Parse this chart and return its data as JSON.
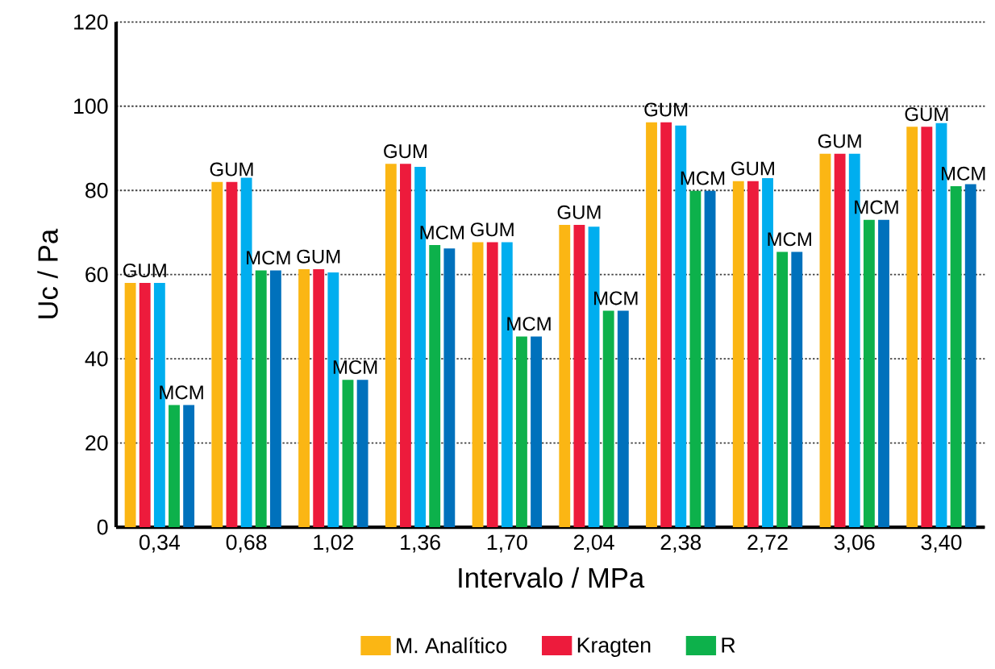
{
  "chart_data": {
    "type": "bar",
    "xlabel": "Intervalo / MPa",
    "ylabel": "Uc / Pa",
    "categories": [
      "0,34",
      "0,68",
      "1,02",
      "1,36",
      "1,70",
      "2,04",
      "2,38",
      "2,72",
      "3,06",
      "3,40"
    ],
    "series": [
      {
        "name": "M. Analítico",
        "color": "#fbb614",
        "values": [
          58,
          82,
          61.3,
          86.3,
          67.7,
          71.8,
          96.2,
          82.2,
          88.7,
          95.1
        ]
      },
      {
        "name": "Kragten",
        "color": "#ed1b3c",
        "values": [
          58,
          82,
          61.3,
          86.3,
          67.7,
          71.8,
          96.2,
          82.2,
          88.7,
          95.1
        ]
      },
      {
        "color": "#00aeef",
        "values": [
          58,
          83,
          60.5,
          85.6,
          67.7,
          71.4,
          95.4,
          82.9,
          88.7,
          96
        ]
      },
      {
        "name": "R",
        "color": "#0db14b",
        "values": [
          29,
          61,
          35,
          67,
          45.3,
          51.4,
          79.9,
          65.4,
          73,
          81
        ]
      },
      {
        "color": "#0071bc",
        "values": [
          29,
          61,
          35,
          66.2,
          45.3,
          51.4,
          79.9,
          65.4,
          73,
          81.5
        ]
      }
    ],
    "annotations": [
      {
        "text": "GUM",
        "x": "0,34",
        "y": 58
      },
      {
        "text": "MCM",
        "x": "0,34",
        "y": 29
      },
      {
        "text": "GUM",
        "x": "0,68",
        "y": 82
      },
      {
        "text": "MCM",
        "x": "0,68",
        "y": 61
      },
      {
        "text": "GUM",
        "x": "1,02",
        "y": 61.3
      },
      {
        "text": "MCM",
        "x": "1,02",
        "y": 35
      },
      {
        "text": "GUM",
        "x": "1,36",
        "y": 86.3
      },
      {
        "text": "MCM",
        "x": "1,36",
        "y": 67
      },
      {
        "text": "GUM",
        "x": "1,70",
        "y": 67.7
      },
      {
        "text": "MCM",
        "x": "1,70",
        "y": 45.3
      },
      {
        "text": "GUM",
        "x": "2,04",
        "y": 71.8
      },
      {
        "text": "MCM",
        "x": "2,04",
        "y": 51.4
      },
      {
        "text": "GUM",
        "x": "2,38",
        "y": 96.2
      },
      {
        "text": "MCM",
        "x": "2,38",
        "y": 79.9
      },
      {
        "text": "GUM",
        "x": "2,72",
        "y": 82.2
      },
      {
        "text": "MCM",
        "x": "2,72",
        "y": 65.4
      },
      {
        "text": "GUM",
        "x": "3,06",
        "y": 88.7
      },
      {
        "text": "MCM",
        "x": "3,06",
        "y": 73
      },
      {
        "text": "GUM",
        "x": "3,40",
        "y": 95.1
      },
      {
        "text": "MCM",
        "x": "3,40",
        "y": 81
      }
    ],
    "ylim": [
      0,
      120
    ],
    "yticks": [
      0,
      20,
      40,
      60,
      80,
      100,
      120
    ],
    "grid": "y",
    "legend": "bottom"
  }
}
